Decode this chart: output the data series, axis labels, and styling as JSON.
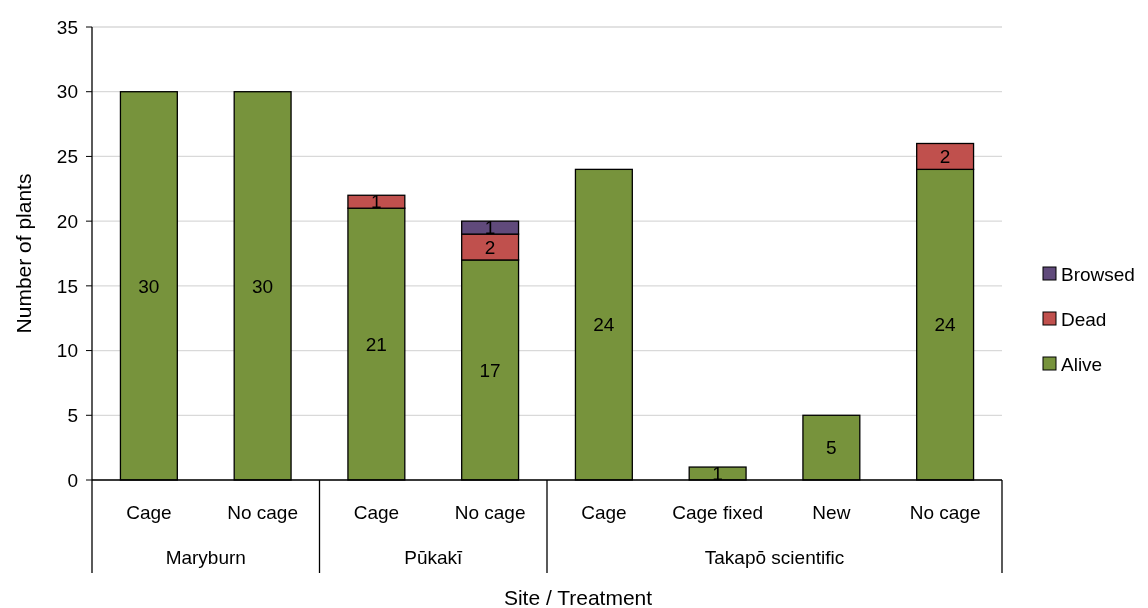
{
  "chart_data": {
    "type": "bar",
    "stacked": true,
    "xlabel": "Site / Treatment",
    "ylabel": "Number of plants",
    "categories": [
      "Cage",
      "No cage",
      "Cage",
      "No cage",
      "Cage",
      "Cage fixed",
      "New",
      "No cage"
    ],
    "annotations": [
      "Maryburn",
      "Pūkakī",
      "Takapō scientific"
    ],
    "series": [
      {
        "name": "Alive",
        "color": "#77933c",
        "values": [
          30,
          30,
          21,
          17,
          24,
          1,
          5,
          24
        ]
      },
      {
        "name": "Dead",
        "color": "#c0504d",
        "values": [
          null,
          null,
          1,
          2,
          null,
          null,
          null,
          2
        ]
      },
      {
        "name": "Browsed",
        "color": "#604a7b",
        "values": [
          null,
          null,
          null,
          1,
          null,
          null,
          null,
          null
        ]
      }
    ],
    "ylim": [
      0,
      35
    ],
    "yticks": [
      0,
      5,
      10,
      15,
      20,
      25,
      30,
      35
    ],
    "grid": "y",
    "legend": "right",
    "data_labels": true
  }
}
